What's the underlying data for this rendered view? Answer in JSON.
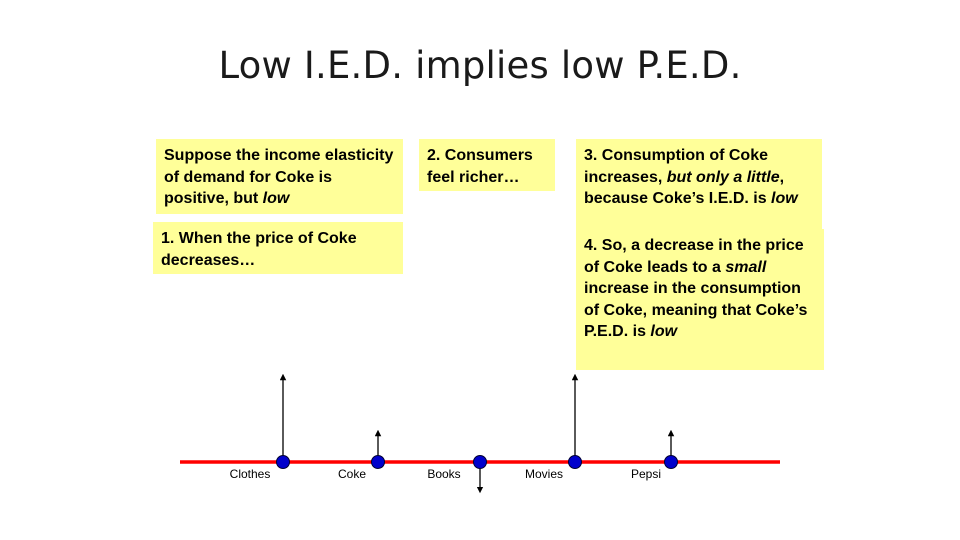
{
  "slide": {
    "title": "Low I.E.D. implies low P.E.D."
  },
  "notes": {
    "intro": {
      "pre": "Suppose the income elasticity of demand for Coke is positive, but ",
      "em": "low",
      "post": ""
    },
    "step1": {
      "text": "1. When the price of Coke decreases…"
    },
    "step2": {
      "text": "2. Consumers feel richer…"
    },
    "step3": {
      "pre": "3. Consumption of Coke increases, ",
      "em": "but only a little",
      "post": ", because Coke’s I.E.D. is ",
      "em2": "low"
    },
    "step4": {
      "pre": "4. So, a decrease in the price of Coke leads to a ",
      "em": "small",
      "mid": " increase in the consumption of Coke, meaning that Coke’s P.E.D. is ",
      "em2": "low"
    }
  },
  "axis": {
    "line_color": "#ff0000",
    "point_color": "#0000cc",
    "goods": [
      {
        "name": "Clothes",
        "arrow": "up-long"
      },
      {
        "name": "Coke",
        "arrow": "up-short"
      },
      {
        "name": "Books",
        "arrow": "down-short"
      },
      {
        "name": "Movies",
        "arrow": "up-long"
      },
      {
        "name": "Pepsi",
        "arrow": "up-short"
      }
    ]
  }
}
